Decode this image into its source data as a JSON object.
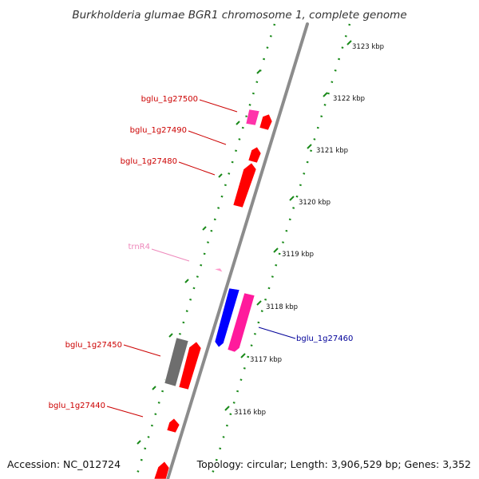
{
  "title": "Burkholderia glumae BGR1 chromosome 1, complete genome",
  "footer": {
    "accession": "Accession: NC_012724",
    "info": "Topology: circular; Length: 3,906,529 bp; Genes: 3,352"
  },
  "colors": {
    "backbone": "#8c8c8c",
    "dots": "#1a8a1a",
    "gene_red": "#ff0000",
    "gene_pink": "#ff1a9c",
    "gene_magenta": "#ff33aa",
    "gene_blue": "#0000ff",
    "gene_grey": "#6e6e6e",
    "trna": "#ff99cc",
    "label_red": "#cc0000",
    "label_blue": "#000099",
    "label_trna": "#ee88bb"
  },
  "ticks": [
    {
      "label": "3123 kbp"
    },
    {
      "label": "3122 kbp"
    },
    {
      "label": "3121 kbp"
    },
    {
      "label": "3120 kbp"
    },
    {
      "label": "3119 kbp"
    },
    {
      "label": "3118 kbp"
    },
    {
      "label": "3117 kbp"
    },
    {
      "label": "3116 kbp"
    }
  ],
  "genes": [
    {
      "label": "bglu_1g27500",
      "type": "gene"
    },
    {
      "label": "bglu_1g27490",
      "type": "gene"
    },
    {
      "label": "bglu_1g27480",
      "type": "gene"
    },
    {
      "label": "trnR4",
      "type": "tRNA"
    },
    {
      "label": "bglu_1g27460",
      "type": "gene"
    },
    {
      "label": "bglu_1g27450",
      "type": "gene"
    },
    {
      "label": "bglu_1g27440",
      "type": "gene"
    }
  ]
}
